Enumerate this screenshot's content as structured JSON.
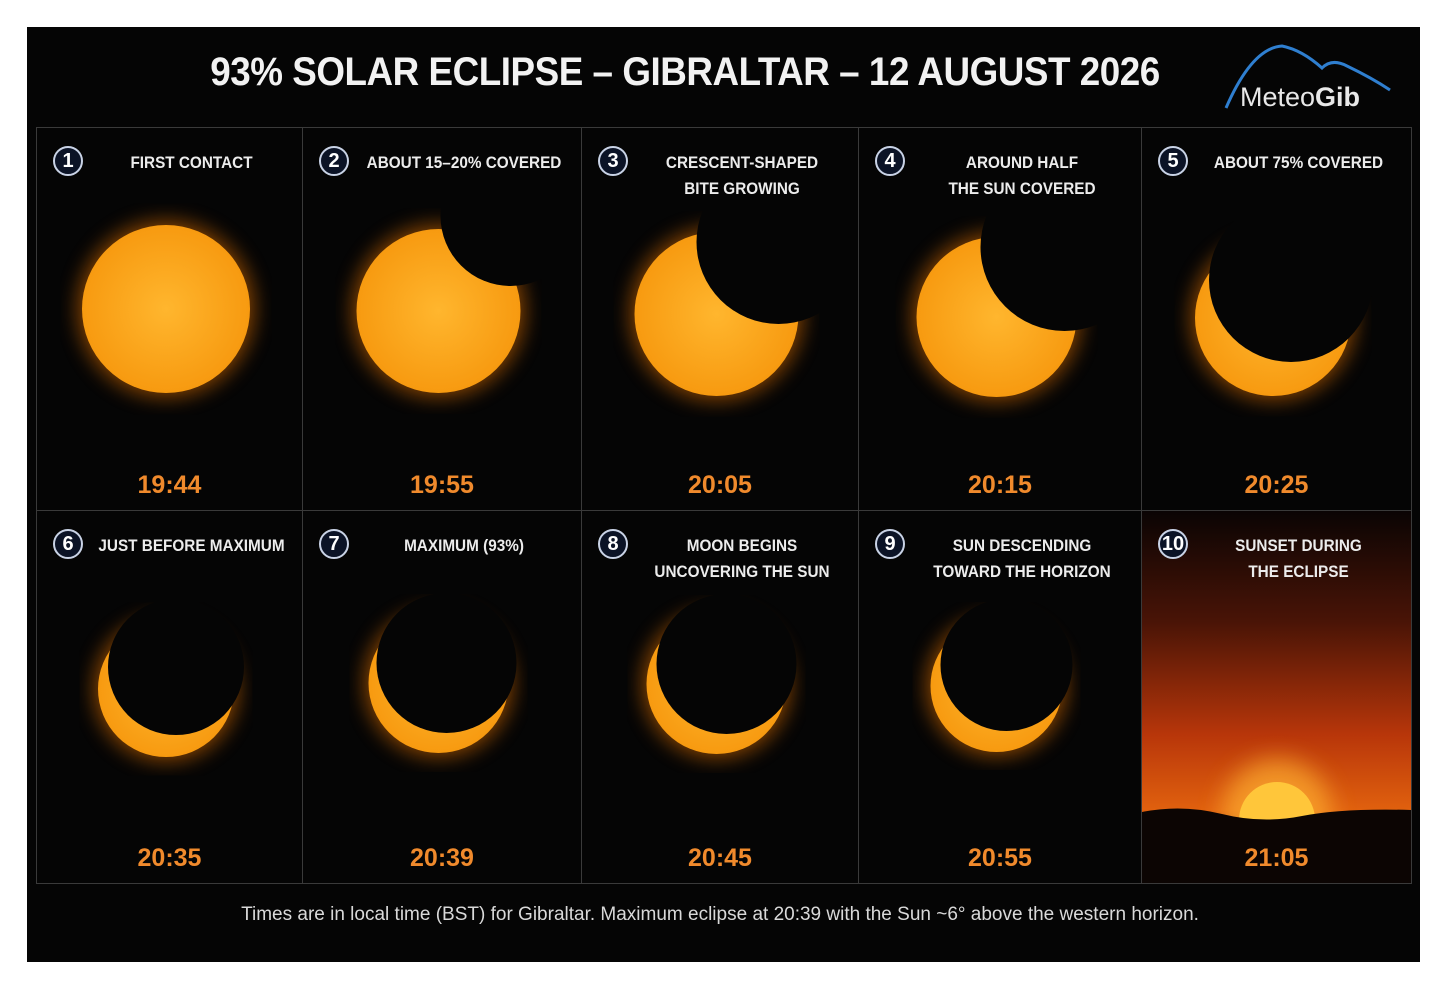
{
  "header": {
    "title": "93% SOLAR ECLIPSE – GIBRALTAR – 12 AUGUST 2026",
    "logo": {
      "light": "Meteo",
      "bold": "Gib"
    }
  },
  "panels": [
    {
      "number": "1",
      "label": [
        "FIRST CONTACT"
      ],
      "time": "19:44"
    },
    {
      "number": "2",
      "label": [
        "ABOUT 15–20% COVERED"
      ],
      "time": "19:55"
    },
    {
      "number": "3",
      "label": [
        "CRESCENT-SHAPED",
        "BITE GROWING"
      ],
      "time": "20:05"
    },
    {
      "number": "4",
      "label": [
        "AROUND HALF",
        "THE SUN COVERED"
      ],
      "time": "20:15"
    },
    {
      "number": "5",
      "label": [
        "ABOUT 75% COVERED"
      ],
      "time": "20:25"
    },
    {
      "number": "6",
      "label": [
        "JUST BEFORE MAXIMUM"
      ],
      "time": "20:35"
    },
    {
      "number": "7",
      "label": [
        "MAXIMUM (93%)"
      ],
      "time": "20:39"
    },
    {
      "number": "8",
      "label": [
        "MOON BEGINS",
        "UNCOVERING THE SUN"
      ],
      "time": "20:45"
    },
    {
      "number": "9",
      "label": [
        "SUN DESCENDING",
        "TOWARD THE HORIZON"
      ],
      "time": "20:55"
    },
    {
      "number": "10",
      "label": [
        "SUNSET DURING",
        "THE ECLIPSE"
      ],
      "time": "21:05"
    }
  ],
  "footer": "Times are in local time (BST) for Gibraltar. Maximum eclipse at 20:39 with the Sun ~6° above the western horizon."
}
